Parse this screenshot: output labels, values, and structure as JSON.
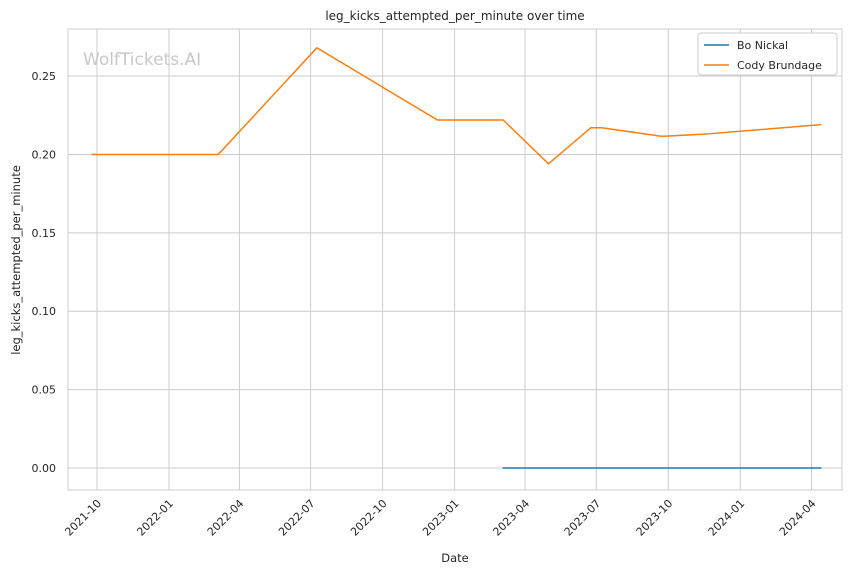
{
  "chart_data": {
    "type": "line",
    "title": "leg_kicks_attempted_per_minute over time",
    "xlabel": "Date",
    "ylabel": "leg_kicks_attempted_per_minute",
    "watermark": "WolfTickets.AI",
    "grid": true,
    "legend_position": "top-right",
    "x_ticks": [
      "2021-10",
      "2022-01",
      "2022-04",
      "2022-07",
      "2022-10",
      "2023-01",
      "2023-04",
      "2023-07",
      "2023-10",
      "2024-01",
      "2024-04"
    ],
    "y_ticks": [
      "0.00",
      "0.05",
      "0.10",
      "0.15",
      "0.20",
      "0.25"
    ],
    "xlim": [
      "2021-08-25",
      "2024-05-10"
    ],
    "ylim": [
      -0.014,
      0.28
    ],
    "series": [
      {
        "name": "Bo Nickal",
        "color": "#1f77b4",
        "points": [
          [
            "2023-03-04",
            0.0
          ],
          [
            "2024-04-13",
            0.0
          ]
        ]
      },
      {
        "name": "Cody Brundage",
        "color": "#ff7f0e",
        "points": [
          [
            "2021-09-25",
            0.2
          ],
          [
            "2022-03-05",
            0.2
          ],
          [
            "2022-07-09",
            0.268
          ],
          [
            "2022-12-10",
            0.222
          ],
          [
            "2023-03-04",
            0.222
          ],
          [
            "2023-05-01",
            0.194
          ],
          [
            "2023-06-24",
            0.217
          ],
          [
            "2023-07-08",
            0.217
          ],
          [
            "2023-09-23",
            0.2115
          ],
          [
            "2023-11-18",
            0.213
          ],
          [
            "2024-04-13",
            0.219
          ]
        ]
      }
    ]
  }
}
